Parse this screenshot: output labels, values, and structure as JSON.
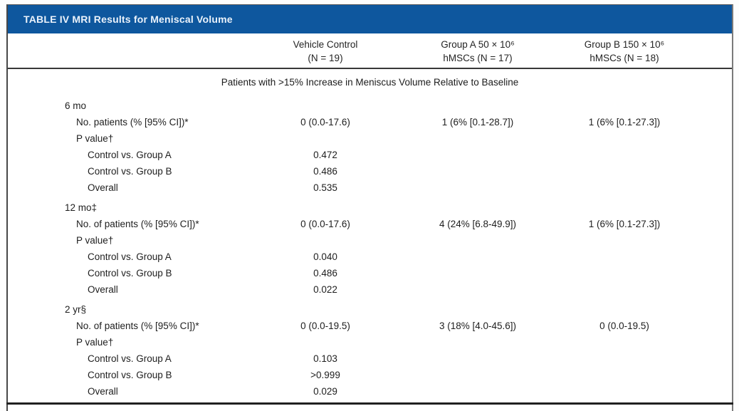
{
  "colors": {
    "title-bg": "#0e579e",
    "title-text": "#eaf2fb",
    "body-text": "#1e1e1e",
    "rule": "#383838"
  },
  "table": {
    "title": "TABLE IV MRI Results for Meniscal Volume",
    "columns": [
      {
        "line1": "Vehicle Control",
        "line2": "(N = 19)"
      },
      {
        "line1": "Group A 50 × 10⁶",
        "line2": "hMSCs (N = 17)"
      },
      {
        "line1": "Group B 150 × 10⁶",
        "line2": "hMSCs (N = 18)"
      }
    ],
    "subtitle": "Patients with >15% Increase in Meniscus Volume Relative to Baseline",
    "groups": [
      {
        "label": "6 mo",
        "rows": [
          {
            "label": "No. patients (% [95% CI])*",
            "values": [
              "0 (0.0-17.6)",
              "1 (6% [0.1-28.7])",
              "1 (6% [0.1-27.3])"
            ]
          },
          {
            "label": "P value†",
            "values": [
              "",
              "",
              ""
            ]
          },
          {
            "label": "Control vs. Group A",
            "values": [
              "0.472",
              "",
              ""
            ]
          },
          {
            "label": "Control vs. Group B",
            "values": [
              "0.486",
              "",
              ""
            ]
          },
          {
            "label": "Overall",
            "values": [
              "0.535",
              "",
              ""
            ]
          }
        ]
      },
      {
        "label": "12 mo‡",
        "rows": [
          {
            "label": "No. of patients (% [95% CI])*",
            "values": [
              "0 (0.0-17.6)",
              "4 (24% [6.8-49.9])",
              "1 (6% [0.1-27.3])"
            ]
          },
          {
            "label": "P value†",
            "values": [
              "",
              "",
              ""
            ]
          },
          {
            "label": "Control vs. Group A",
            "values": [
              "0.040",
              "",
              ""
            ]
          },
          {
            "label": "Control vs. Group B",
            "values": [
              "0.486",
              "",
              ""
            ]
          },
          {
            "label": "Overall",
            "values": [
              "0.022",
              "",
              ""
            ]
          }
        ]
      },
      {
        "label": "2 yr§",
        "rows": [
          {
            "label": "No. of patients (% [95% CI])*",
            "values": [
              "0 (0.0-19.5)",
              "3 (18% [4.0-45.6])",
              "0 (0.0-19.5)"
            ]
          },
          {
            "label": "P value†",
            "values": [
              "",
              "",
              ""
            ]
          },
          {
            "label": "Control vs. Group A",
            "values": [
              "0.103",
              "",
              ""
            ]
          },
          {
            "label": "Control vs. Group B",
            "values": [
              ">0.999",
              "",
              ""
            ]
          },
          {
            "label": "Overall",
            "values": [
              "0.029",
              "",
              ""
            ]
          }
        ]
      }
    ]
  }
}
